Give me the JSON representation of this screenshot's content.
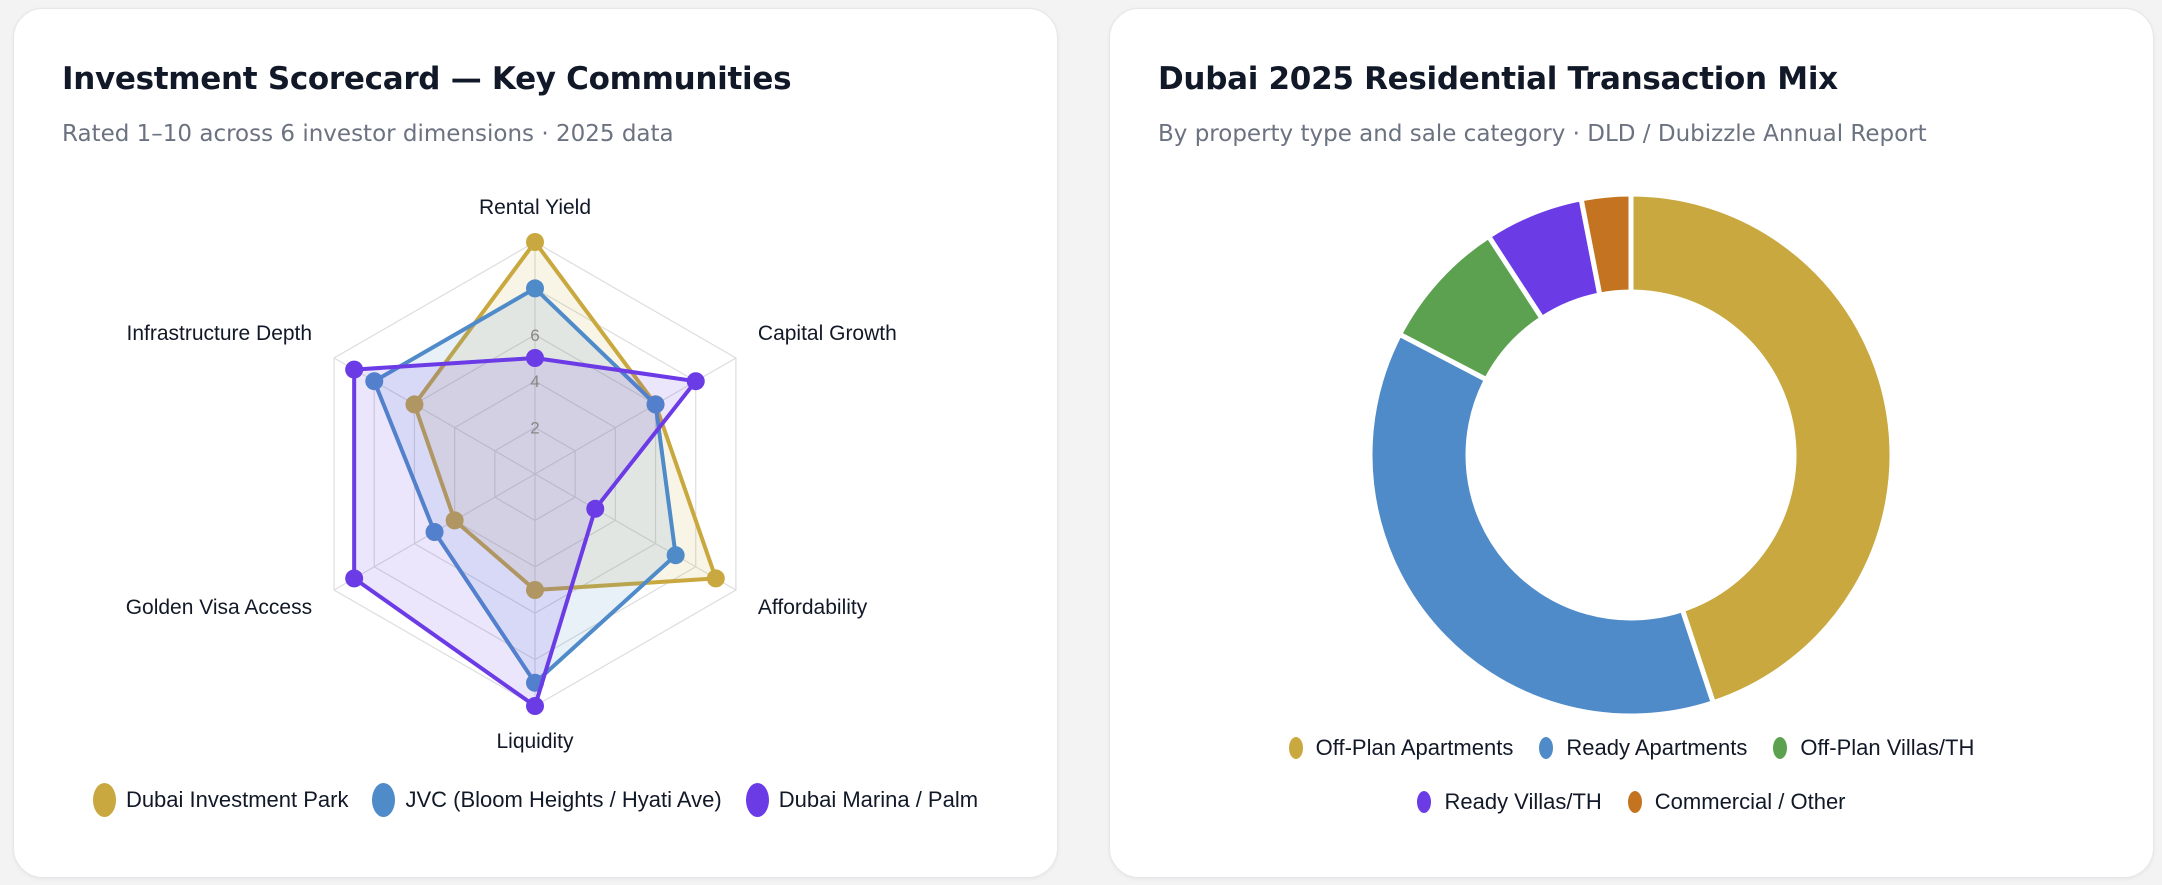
{
  "left_card": {
    "title": "Investment Scorecard — Key Communities",
    "subtitle": "Rated 1–10 across 6 investor dimensions · 2025 data"
  },
  "right_card": {
    "title": "Dubai 2025 Residential Transaction Mix",
    "subtitle": "By property type and sale category · DLD / Dubizzle Annual Report"
  },
  "chart_data": [
    {
      "type": "radar",
      "title": "Investment Scorecard — Key Communities",
      "axes": [
        "Rental Yield",
        "Capital Growth",
        "Affordability",
        "Liquidity",
        "Golden Visa Access",
        "Infrastructure Depth"
      ],
      "r_range": [
        0,
        10
      ],
      "ticks": [
        2,
        4,
        6
      ],
      "series": [
        {
          "name": "Dubai Investment Park",
          "color": "#c9a83f",
          "values": [
            10,
            6,
            9,
            5,
            4,
            6
          ]
        },
        {
          "name": "JVC (Bloom Heights / Hyati Ave)",
          "color": "#4f8ac9",
          "values": [
            8,
            6,
            7,
            9,
            5,
            8
          ]
        },
        {
          "name": "Dubai Marina / Palm",
          "color": "#6b3be6",
          "values": [
            5,
            8,
            3,
            10,
            9,
            9
          ]
        }
      ],
      "legend_position": "bottom"
    },
    {
      "type": "pie",
      "style": "donut",
      "title": "Dubai 2025 Residential Transaction Mix",
      "categories": [
        "Off-Plan Apartments",
        "Ready Apartments",
        "Off-Plan Villas/TH",
        "Ready Villas/TH",
        "Commercial / Other"
      ],
      "values": [
        44,
        37,
        8,
        6,
        3
      ],
      "colors": [
        "#c9a83f",
        "#4f8ac9",
        "#5ba150",
        "#6b3be6",
        "#c47420"
      ],
      "legend_position": "bottom"
    }
  ]
}
